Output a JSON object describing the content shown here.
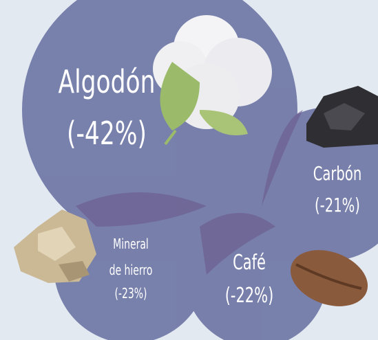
{
  "items": [
    {
      "name": "Algodón",
      "change": "(-42%)"
    },
    {
      "name": "Carbón",
      "change": "(-21%)"
    },
    {
      "name": "Mineral",
      "name_line2": "de hierro",
      "change": "(-23%)"
    },
    {
      "name": "Café",
      "change": "(-22%)"
    }
  ]
}
